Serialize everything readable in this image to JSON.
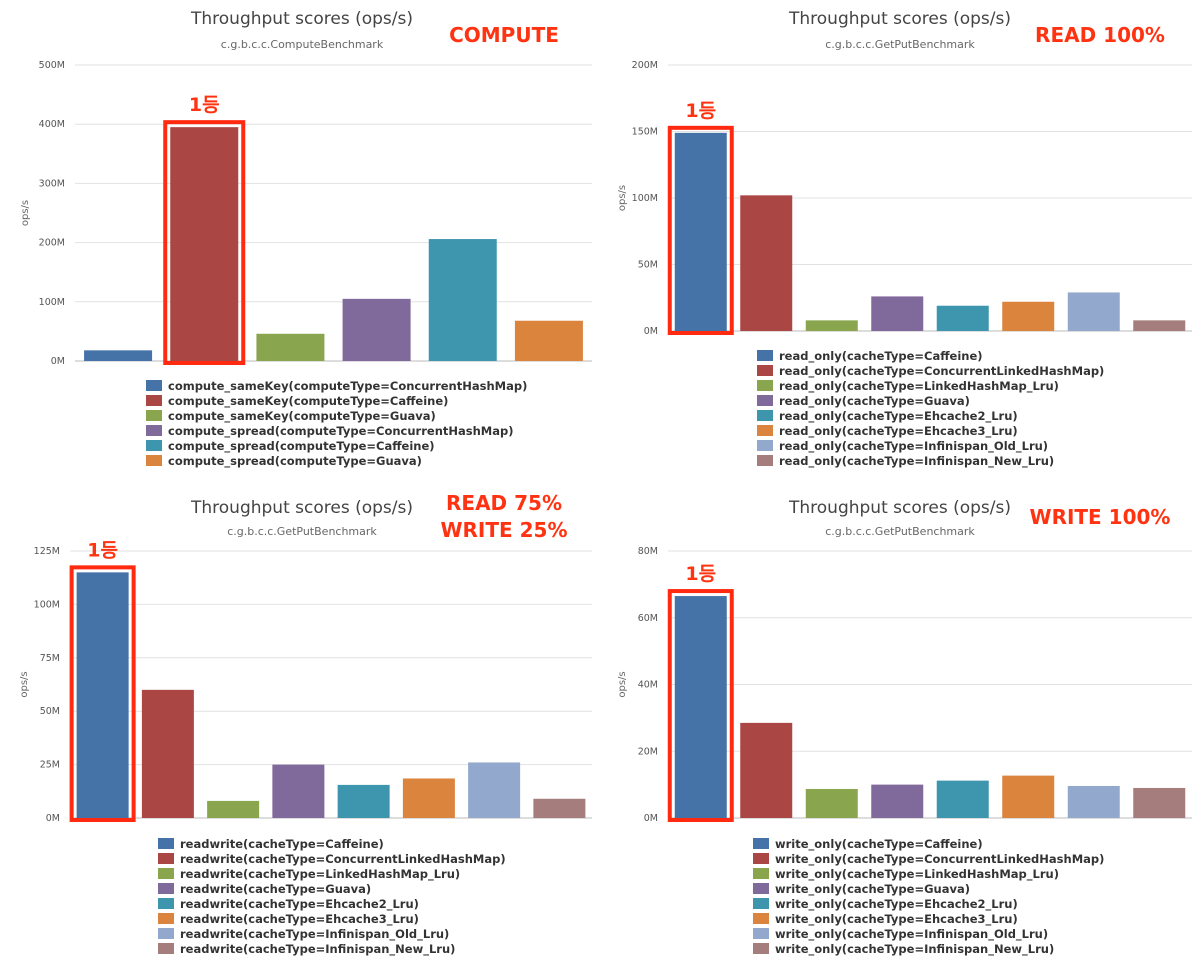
{
  "colors": {
    "highlight": "#ff2a0f",
    "palette": [
      "#4572a7",
      "#aa4643",
      "#89a54e",
      "#80699b",
      "#3d96ae",
      "#db843d",
      "#92a8cd",
      "#a47d7c"
    ],
    "compute_palette": [
      "#4572a7",
      "#aa4643",
      "#89a54e",
      "#80699b",
      "#3d96ae",
      "#db843d"
    ]
  },
  "chart_data": [
    {
      "type": "bar",
      "title": "Throughput scores (ops/s)",
      "subtitle": "c.g.b.c.c.ComputeBenchmark",
      "annotation": [
        "COMPUTE"
      ],
      "rank_label": "1등",
      "highlight_index": 1,
      "ylabel": "ops/s",
      "ylim": [
        0,
        500
      ],
      "yticks": [
        {
          "value": 0,
          "label": "0M"
        },
        {
          "value": 100,
          "label": "100M"
        },
        {
          "value": 200,
          "label": "200M"
        },
        {
          "value": 300,
          "label": "300M"
        },
        {
          "value": 400,
          "label": "400M"
        },
        {
          "value": 500,
          "label": "500M"
        }
      ],
      "unit": "M ops/s",
      "series": [
        {
          "name": "compute_sameKey(computeType=ConcurrentHashMap)",
          "value": 18
        },
        {
          "name": "compute_sameKey(computeType=Caffeine)",
          "value": 395
        },
        {
          "name": "compute_sameKey(computeType=Guava)",
          "value": 46
        },
        {
          "name": "compute_spread(computeType=ConcurrentHashMap)",
          "value": 105
        },
        {
          "name": "compute_spread(computeType=Caffeine)",
          "value": 206
        },
        {
          "name": "compute_spread(computeType=Guava)",
          "value": 68
        }
      ]
    },
    {
      "type": "bar",
      "title": "Throughput scores (ops/s)",
      "subtitle": "c.g.b.c.c.GetPutBenchmark",
      "annotation": [
        "READ 100%"
      ],
      "rank_label": "1등",
      "highlight_index": 0,
      "ylabel": "ops/s",
      "ylim": [
        0,
        200
      ],
      "yticks": [
        {
          "value": 0,
          "label": "0M"
        },
        {
          "value": 50,
          "label": "50M"
        },
        {
          "value": 100,
          "label": "100M"
        },
        {
          "value": 150,
          "label": "150M"
        },
        {
          "value": 200,
          "label": "200M"
        }
      ],
      "unit": "M ops/s",
      "series": [
        {
          "name": "read_only(cacheType=Caffeine)",
          "value": 149
        },
        {
          "name": "read_only(cacheType=ConcurrentLinkedHashMap)",
          "value": 102
        },
        {
          "name": "read_only(cacheType=LinkedHashMap_Lru)",
          "value": 8
        },
        {
          "name": "read_only(cacheType=Guava)",
          "value": 26
        },
        {
          "name": "read_only(cacheType=Ehcache2_Lru)",
          "value": 19
        },
        {
          "name": "read_only(cacheType=Ehcache3_Lru)",
          "value": 22
        },
        {
          "name": "read_only(cacheType=Infinispan_Old_Lru)",
          "value": 29
        },
        {
          "name": "read_only(cacheType=Infinispan_New_Lru)",
          "value": 8
        }
      ]
    },
    {
      "type": "bar",
      "title": "Throughput scores (ops/s)",
      "subtitle": "c.g.b.c.c.GetPutBenchmark",
      "annotation": [
        "READ 75%",
        "WRITE 25%"
      ],
      "rank_label": "1등",
      "highlight_index": 0,
      "ylabel": "ops/s",
      "ylim": [
        0,
        125
      ],
      "yticks": [
        {
          "value": 0,
          "label": "0M"
        },
        {
          "value": 25,
          "label": "25M"
        },
        {
          "value": 50,
          "label": "50M"
        },
        {
          "value": 75,
          "label": "75M"
        },
        {
          "value": 100,
          "label": "100M"
        },
        {
          "value": 125,
          "label": "125M"
        }
      ],
      "unit": "M ops/s",
      "series": [
        {
          "name": "readwrite(cacheType=Caffeine)",
          "value": 115
        },
        {
          "name": "readwrite(cacheType=ConcurrentLinkedHashMap)",
          "value": 60
        },
        {
          "name": "readwrite(cacheType=LinkedHashMap_Lru)",
          "value": 8
        },
        {
          "name": "readwrite(cacheType=Guava)",
          "value": 25
        },
        {
          "name": "readwrite(cacheType=Ehcache2_Lru)",
          "value": 15.5
        },
        {
          "name": "readwrite(cacheType=Ehcache3_Lru)",
          "value": 18.5
        },
        {
          "name": "readwrite(cacheType=Infinispan_Old_Lru)",
          "value": 26
        },
        {
          "name": "readwrite(cacheType=Infinispan_New_Lru)",
          "value": 9
        }
      ]
    },
    {
      "type": "bar",
      "title": "Throughput scores (ops/s)",
      "subtitle": "c.g.b.c.c.GetPutBenchmark",
      "annotation": [
        "WRITE 100%"
      ],
      "rank_label": "1등",
      "highlight_index": 0,
      "ylabel": "ops/s",
      "ylim": [
        0,
        80
      ],
      "yticks": [
        {
          "value": 0,
          "label": "0M"
        },
        {
          "value": 20,
          "label": "20M"
        },
        {
          "value": 40,
          "label": "40M"
        },
        {
          "value": 60,
          "label": "60M"
        },
        {
          "value": 80,
          "label": "80M"
        }
      ],
      "unit": "M ops/s",
      "series": [
        {
          "name": "write_only(cacheType=Caffeine)",
          "value": 66.5
        },
        {
          "name": "write_only(cacheType=ConcurrentLinkedHashMap)",
          "value": 28.5
        },
        {
          "name": "write_only(cacheType=LinkedHashMap_Lru)",
          "value": 8.7
        },
        {
          "name": "write_only(cacheType=Guava)",
          "value": 10
        },
        {
          "name": "write_only(cacheType=Ehcache2_Lru)",
          "value": 11.2
        },
        {
          "name": "write_only(cacheType=Ehcache3_Lru)",
          "value": 12.7
        },
        {
          "name": "write_only(cacheType=Infinispan_Old_Lru)",
          "value": 9.6
        },
        {
          "name": "write_only(cacheType=Infinispan_New_Lru)",
          "value": 9
        }
      ]
    }
  ]
}
